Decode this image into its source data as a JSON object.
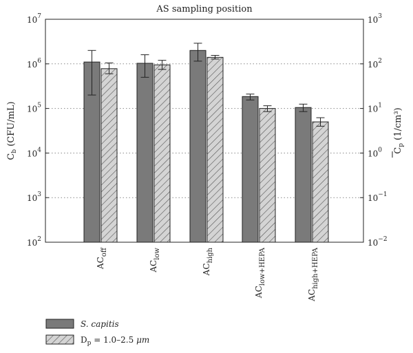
{
  "chart_data": {
    "type": "bar",
    "title": "AS sampling position",
    "categories": [
      {
        "base": "AC",
        "sub": "off"
      },
      {
        "base": "AC",
        "sub": "low"
      },
      {
        "base": "AC",
        "sub": "high"
      },
      {
        "base": "AC",
        "sub": "low+HEPA"
      },
      {
        "base": "AC",
        "sub": "high+HEPA"
      }
    ],
    "left_axis": {
      "label_main": "C",
      "label_sub": "b",
      "label_unit": " (CFU/mL)",
      "scale": "log",
      "ylim": [
        100,
        10000000
      ],
      "ticks": [
        {
          "value": 100,
          "base": "10",
          "exp": "2"
        },
        {
          "value": 1000,
          "base": "10",
          "exp": "3"
        },
        {
          "value": 10000,
          "base": "10",
          "exp": "4"
        },
        {
          "value": 100000,
          "base": "10",
          "exp": "5"
        },
        {
          "value": 1000000,
          "base": "10",
          "exp": "6"
        },
        {
          "value": 10000000,
          "base": "10",
          "exp": "7"
        }
      ]
    },
    "right_axis": {
      "label_main": "C",
      "label_sub": "p",
      "label_unit": " (1/cm³)",
      "overline": true,
      "scale": "log",
      "ylim": [
        0.01,
        1000
      ],
      "ticks": [
        {
          "value": 0.01,
          "base": "10",
          "exp": "−2"
        },
        {
          "value": 0.1,
          "base": "10",
          "exp": "−1"
        },
        {
          "value": 1,
          "base": "10",
          "exp": "0"
        },
        {
          "value": 10,
          "base": "10",
          "exp": "1"
        },
        {
          "value": 100,
          "base": "10",
          "exp": "2"
        },
        {
          "value": 1000,
          "base": "10",
          "exp": "3"
        }
      ]
    },
    "series": [
      {
        "name": "S. capitis",
        "axis": "left",
        "pattern": "solid",
        "color": "#7a7a7a",
        "values": [
          1100000,
          1030000,
          2000000,
          185000,
          105000
        ],
        "error_low": [
          200000,
          500000,
          1150000,
          155000,
          85000
        ],
        "error_high": [
          2000000,
          1600000,
          2900000,
          210000,
          125000
        ]
      },
      {
        "name_main": "D",
        "name_sub": "p",
        "name_rest": " = 1.0–2.5 ",
        "name_unit": "μm",
        "axis": "right",
        "pattern": "hatched",
        "color": "#d4d4d4",
        "values": [
          78,
          95,
          140,
          10,
          5
        ],
        "error_low": [
          60,
          75,
          128,
          8.5,
          4
        ],
        "error_high": [
          105,
          120,
          155,
          11.5,
          6.2
        ]
      }
    ],
    "grid": {
      "horizontal": true,
      "style": "dotted"
    },
    "legend": {
      "position": "bottom-left"
    }
  }
}
